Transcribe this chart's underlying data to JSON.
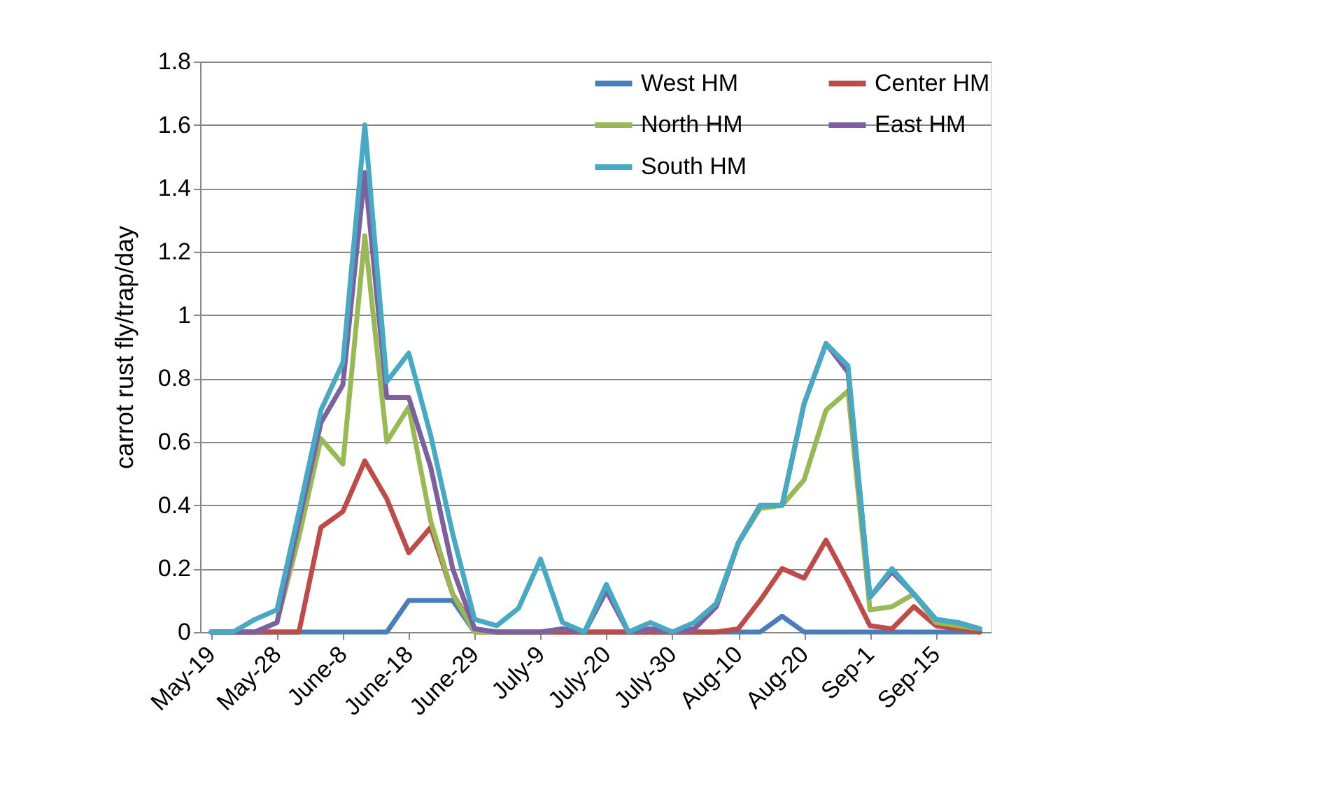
{
  "chart_data": {
    "type": "line",
    "ylabel": "carrot rust fly/trap/day",
    "categories": [
      "May-19",
      null,
      null,
      "May-28",
      null,
      null,
      "June-8",
      null,
      null,
      "June-18",
      null,
      null,
      "June-29",
      null,
      null,
      "July-9",
      null,
      null,
      "July-20",
      null,
      null,
      "July-30",
      null,
      null,
      "Aug-10",
      null,
      null,
      "Aug-20",
      null,
      null,
      "Sep-1",
      null,
      null,
      "Sep-15",
      null,
      null
    ],
    "series": [
      {
        "name": "West HM",
        "color": "#4a7ebb",
        "values": [
          0,
          0,
          0,
          0,
          0,
          0,
          0,
          0,
          0,
          0.1,
          0.1,
          0.1,
          0,
          0,
          0,
          0,
          0,
          0,
          0,
          0,
          0,
          0,
          0,
          0,
          0,
          0,
          0.05,
          0,
          0,
          0,
          0,
          0,
          0,
          0,
          0,
          0
        ]
      },
      {
        "name": "Center HM",
        "color": "#be4b48",
        "values": [
          0,
          0,
          0,
          0,
          0,
          0.33,
          0.38,
          0.54,
          0.42,
          0.25,
          0.33,
          0.12,
          0.01,
          0,
          0,
          0,
          0,
          0,
          0,
          0,
          0,
          0,
          0,
          0,
          0.01,
          0.1,
          0.2,
          0.17,
          0.29,
          0.16,
          0.02,
          0.01,
          0.08,
          0.02,
          0.01,
          0
        ]
      },
      {
        "name": "North HM",
        "color": "#98b954",
        "values": [
          null,
          null,
          0,
          0.03,
          0.3,
          0.61,
          0.53,
          1.25,
          0.6,
          0.71,
          0.35,
          0.12,
          0,
          0,
          0,
          0,
          0.01,
          0,
          0.13,
          0,
          0.01,
          0,
          0.01,
          0.08,
          0.28,
          0.39,
          0.4,
          0.48,
          0.7,
          0.76,
          0.07,
          0.08,
          0.12,
          0.03,
          0.02,
          0.01
        ]
      },
      {
        "name": "East HM",
        "color": "#7d60a0",
        "values": [
          0,
          0,
          0,
          0.03,
          0.35,
          0.66,
          0.78,
          1.45,
          0.74,
          0.74,
          0.52,
          0.2,
          0.01,
          0,
          0,
          0,
          0.01,
          0,
          0.13,
          0,
          0.01,
          0,
          0.01,
          0.08,
          0.28,
          0.4,
          0.4,
          0.72,
          0.91,
          0.82,
          0.11,
          0.19,
          0.12,
          0.04,
          0.03,
          0.01
        ]
      },
      {
        "name": "South HM",
        "color": "#46aac5",
        "values": [
          0,
          0,
          0.04,
          0.07,
          0.38,
          0.7,
          0.85,
          1.6,
          0.79,
          0.88,
          0.62,
          0.31,
          0.04,
          0.02,
          0.075,
          0.23,
          0.03,
          0,
          0.15,
          0,
          0.03,
          0,
          0.03,
          0.09,
          0.28,
          0.4,
          0.4,
          0.72,
          0.91,
          0.84,
          0.11,
          0.2,
          0.12,
          0.04,
          0.03,
          0.01
        ]
      }
    ],
    "ylim": [
      0,
      1.8
    ],
    "yticks": [
      0,
      0.2,
      0.4,
      0.6,
      0.8,
      1,
      1.2,
      1.4,
      1.6,
      1.8
    ],
    "grid": "y",
    "legend": "top right",
    "marker": "none",
    "line_style": "solid"
  }
}
